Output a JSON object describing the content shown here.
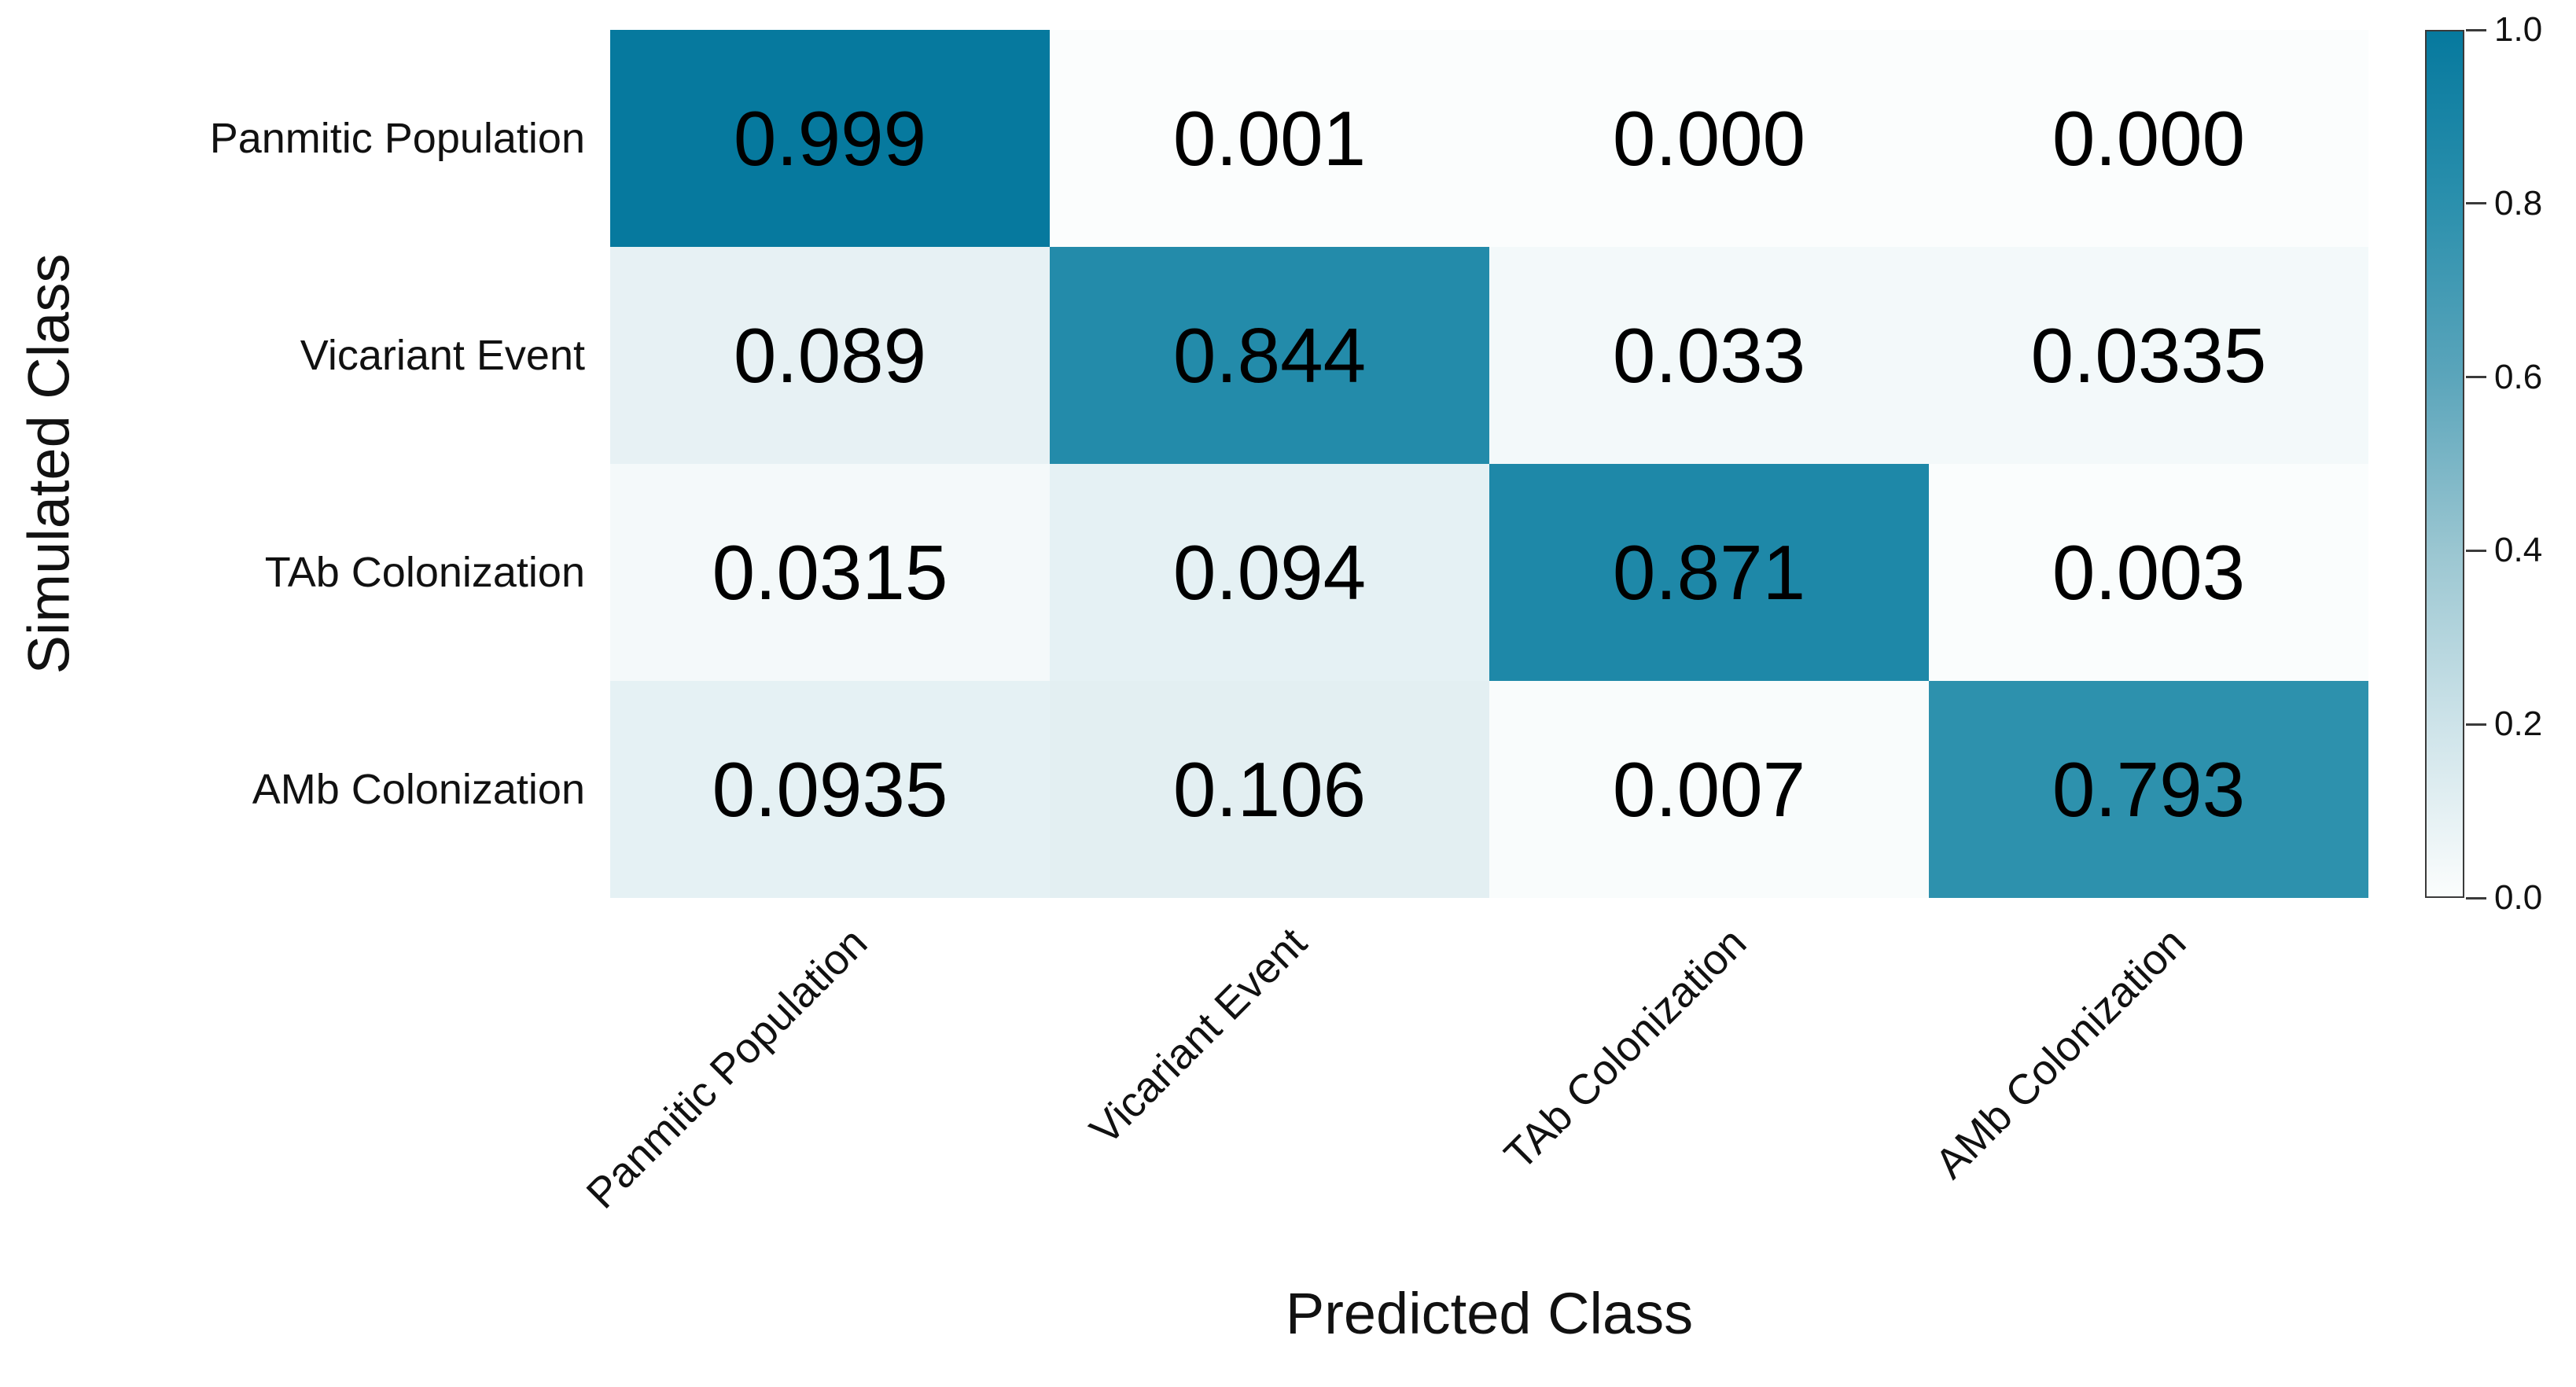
{
  "chart_data": {
    "type": "heatmap",
    "title": "",
    "xlabel": "Predicted Class",
    "ylabel": "Simulated Class",
    "rows": [
      "Panmitic Population",
      "Vicariant Event",
      "TAb Colonization",
      "AMb Colonization"
    ],
    "cols": [
      "Panmitic Population",
      "Vicariant Event",
      "TAb Colonization",
      "AMb Colonization"
    ],
    "values": [
      [
        0.999,
        0.001,
        0.0,
        0.0
      ],
      [
        0.089,
        0.844,
        0.033,
        0.0335
      ],
      [
        0.0315,
        0.094,
        0.871,
        0.003
      ],
      [
        0.0935,
        0.106,
        0.007,
        0.793
      ]
    ],
    "cell_text": [
      [
        "0.999",
        "0.001",
        "0.000",
        "0.000"
      ],
      [
        "0.089",
        "0.844",
        "0.033",
        "0.0335"
      ],
      [
        "0.0315",
        "0.094",
        "0.871",
        "0.003"
      ],
      [
        "0.0935",
        "0.106",
        "0.007",
        "0.793"
      ]
    ],
    "value_range": [
      0,
      1
    ],
    "grid": false,
    "colorbar": {
      "position": "right",
      "tick_labels": [
        "1.0",
        "0.8",
        "0.6",
        "0.4",
        "0.2",
        "0.0"
      ],
      "tick_values": [
        1.0,
        0.8,
        0.6,
        0.4,
        0.2,
        0.0
      ]
    },
    "colormap_stops": [
      {
        "value": 0.0,
        "color": "#fbfdfd"
      },
      {
        "value": 0.2,
        "color": "#cde3e9"
      },
      {
        "value": 0.4,
        "color": "#9ac6d1"
      },
      {
        "value": 0.6,
        "color": "#5ba5bb"
      },
      {
        "value": 0.8,
        "color": "#2b90ad"
      },
      {
        "value": 1.0,
        "color": "#06799e"
      }
    ],
    "colors": {
      "max_color": "#06799e",
      "min_color": "#fbfdfd",
      "cell_text_color": "#000000",
      "label_color": "#111111",
      "colorbar_border_color": "#3a3a3a"
    }
  }
}
